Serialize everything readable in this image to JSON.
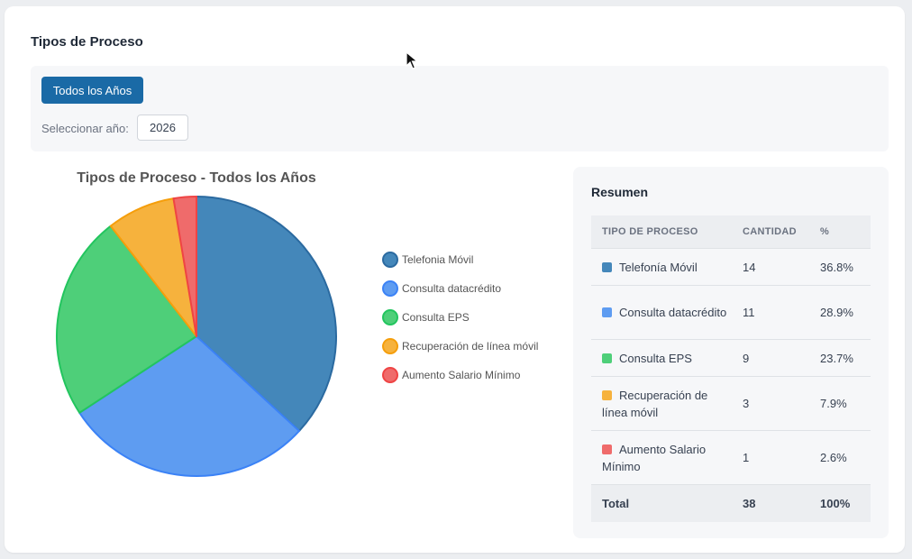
{
  "page": {
    "title": "Tipos de Proceso"
  },
  "filters": {
    "all_years_label": "Todos los Años",
    "year_label": "Seleccionar año:",
    "year_value": "2026"
  },
  "chart_data": {
    "type": "pie",
    "title": "Tipos de Proceso - Todos los Años",
    "categories": [
      "Telefonia Móvil",
      "Consulta datacrédito",
      "Consulta EPS",
      "Recuperación de línea móvil",
      "Aumento Salario Mínimo"
    ],
    "values": [
      14,
      11,
      9,
      3,
      1
    ],
    "colors": [
      "#4487ba",
      "#5e9cf1",
      "#4ecf79",
      "#f6b23d",
      "#ef6b6b"
    ],
    "strokes": [
      "#2b6aa0",
      "#3b82f6",
      "#22c55e",
      "#f59e0b",
      "#ef4444"
    ],
    "legend_position": "right"
  },
  "summary": {
    "title": "Resumen",
    "headers": [
      "Tipo de Proceso",
      "Cantidad",
      "%"
    ],
    "rows": [
      {
        "name": "Telefonía Móvil",
        "count": "14",
        "pct": "36.8%",
        "color": "#4487ba"
      },
      {
        "name": "Consulta datacrédito",
        "count": "11",
        "pct": "28.9%",
        "color": "#5e9cf1"
      },
      {
        "name": "Consulta EPS",
        "count": "9",
        "pct": "23.7%",
        "color": "#4ecf79"
      },
      {
        "name": "Recuperación de línea móvil",
        "count": "3",
        "pct": "7.9%",
        "color": "#f6b23d"
      },
      {
        "name": "Aumento Salario Mínimo",
        "count": "1",
        "pct": "2.6%",
        "color": "#ef6b6b"
      }
    ],
    "total": {
      "label": "Total",
      "count": "38",
      "pct": "100%"
    }
  }
}
